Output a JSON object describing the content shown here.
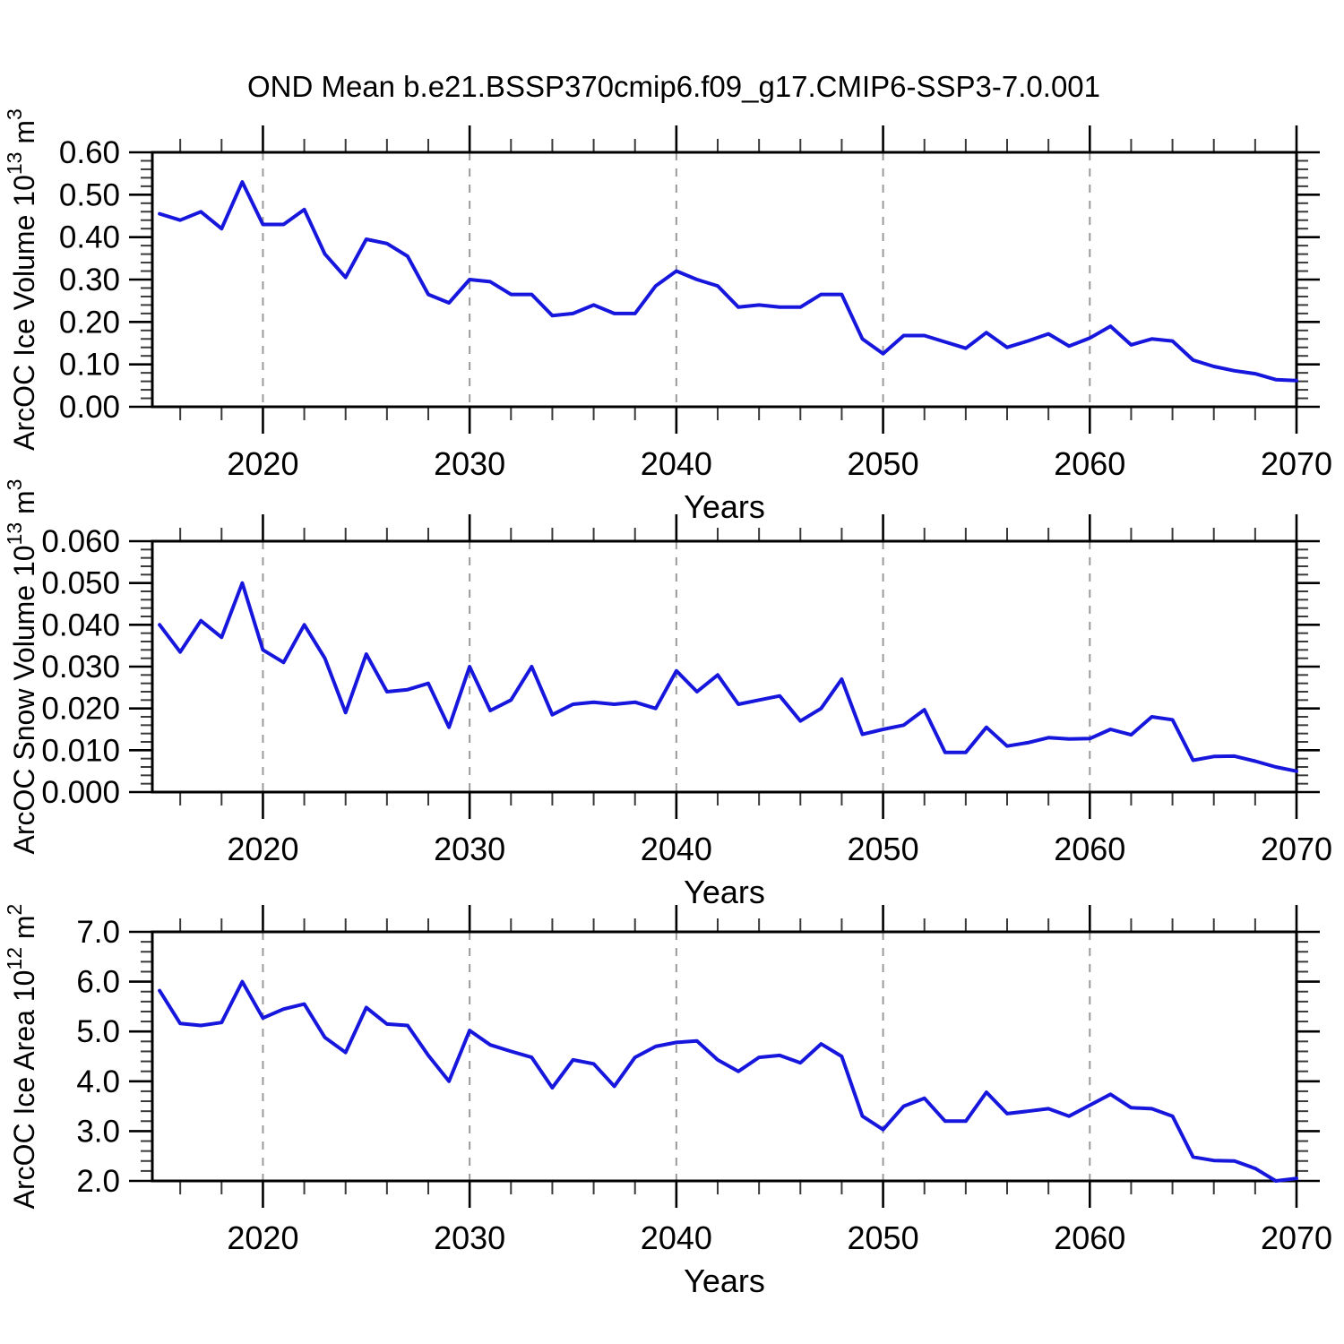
{
  "figure_title": "OND Mean b.e21.BSSP370cmip6.f09_g17.CMIP6-SSP3-7.0.001",
  "style": {
    "line_color": "#1616dd",
    "frame_color": "#000000",
    "grid_color": "#9a9a9a",
    "text_color": "#000000",
    "background": "#ffffff"
  },
  "x_axis": {
    "title": "Years",
    "range": [
      2014.65,
      2070
    ],
    "major_ticks": [
      2020,
      2030,
      2040,
      2050,
      2060,
      2070
    ],
    "tick_labels": [
      "2020",
      "2030",
      "2040",
      "2050",
      "2060",
      "2070"
    ],
    "gridlines": [
      2020,
      2030,
      2040,
      2050,
      2060
    ],
    "minor_start": 2016,
    "minor_step": 2
  },
  "chart_data": [
    {
      "type": "line",
      "name": "ice-volume",
      "ylabel": "ArcOC Ice Volume 10^13^ m^3^",
      "ylim": [
        0,
        0.6
      ],
      "ytick_step": 0.1,
      "ytick_labels": [
        "0.00",
        "0.10",
        "0.20",
        "0.30",
        "0.40",
        "0.50",
        "0.60"
      ],
      "yminor_step": 0.02,
      "x_start": 2015,
      "x_step": 1,
      "values": [
        0.455,
        0.44,
        0.46,
        0.42,
        0.53,
        0.43,
        0.43,
        0.465,
        0.36,
        0.305,
        0.395,
        0.385,
        0.355,
        0.265,
        0.245,
        0.3,
        0.295,
        0.265,
        0.265,
        0.215,
        0.22,
        0.24,
        0.22,
        0.22,
        0.285,
        0.32,
        0.3,
        0.285,
        0.235,
        0.24,
        0.235,
        0.235,
        0.265,
        0.265,
        0.16,
        0.125,
        0.168,
        0.168,
        0.153,
        0.138,
        0.175,
        0.14,
        0.155,
        0.172,
        0.143,
        0.162,
        0.19,
        0.146,
        0.16,
        0.155,
        0.11,
        0.095,
        0.085,
        0.078,
        0.064,
        0.062
      ]
    },
    {
      "type": "line",
      "name": "snow-volume",
      "ylabel": "ArcOC Snow Volume 10^13^ m^3^",
      "ylim": [
        0,
        0.06
      ],
      "ytick_step": 0.01,
      "ytick_labels": [
        "0.000",
        "0.010",
        "0.020",
        "0.030",
        "0.040",
        "0.050",
        "0.060"
      ],
      "yminor_step": 0.002,
      "x_start": 2015,
      "x_step": 1,
      "values": [
        0.04,
        0.0335,
        0.041,
        0.037,
        0.05,
        0.034,
        0.031,
        0.04,
        0.032,
        0.019,
        0.033,
        0.024,
        0.0245,
        0.026,
        0.0155,
        0.03,
        0.0195,
        0.022,
        0.03,
        0.0185,
        0.021,
        0.0215,
        0.021,
        0.0215,
        0.02,
        0.029,
        0.024,
        0.028,
        0.021,
        0.022,
        0.023,
        0.017,
        0.02,
        0.027,
        0.0138,
        0.015,
        0.016,
        0.0197,
        0.0095,
        0.0095,
        0.0155,
        0.011,
        0.0118,
        0.013,
        0.0127,
        0.0128,
        0.015,
        0.0137,
        0.018,
        0.0173,
        0.0076,
        0.0085,
        0.0086,
        0.0074,
        0.006,
        0.005
      ]
    },
    {
      "type": "line",
      "name": "ice-area",
      "ylabel": "ArcOC Ice Area 10^12^ m^2^",
      "ylim": [
        2,
        7
      ],
      "ytick_step": 1,
      "ytick_labels": [
        "2.0",
        "3.0",
        "4.0",
        "5.0",
        "6.0",
        "7.0"
      ],
      "yminor_step": 0.2,
      "x_start": 2015,
      "x_step": 1,
      "values": [
        5.82,
        5.16,
        5.12,
        5.18,
        6.0,
        5.27,
        5.45,
        5.55,
        4.88,
        4.58,
        5.48,
        5.15,
        5.12,
        4.52,
        4.0,
        5.02,
        4.73,
        4.6,
        4.48,
        3.87,
        4.43,
        4.35,
        3.9,
        4.48,
        4.7,
        4.78,
        4.81,
        4.43,
        4.2,
        4.48,
        4.52,
        4.37,
        4.75,
        4.5,
        3.3,
        3.03,
        3.5,
        3.66,
        3.2,
        3.2,
        3.78,
        3.35,
        3.4,
        3.45,
        3.3,
        3.52,
        3.74,
        3.47,
        3.45,
        3.3,
        2.48,
        2.41,
        2.4,
        2.25,
        2.0,
        2.05
      ]
    }
  ]
}
